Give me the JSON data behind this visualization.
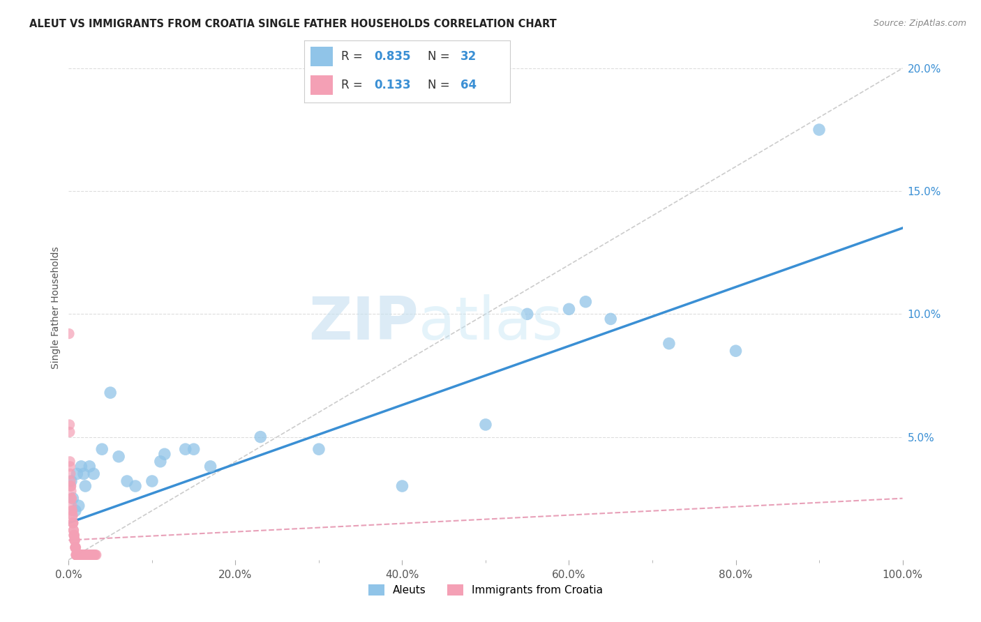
{
  "title": "ALEUT VS IMMIGRANTS FROM CROATIA SINGLE FATHER HOUSEHOLDS CORRELATION CHART",
  "source": "Source: ZipAtlas.com",
  "ylabel": "Single Father Households",
  "x_tick_labels": [
    "0.0%",
    "20.0%",
    "40.0%",
    "60.0%",
    "80.0%",
    "100.0%"
  ],
  "x_tick_values": [
    0,
    20,
    40,
    60,
    80,
    100
  ],
  "y_tick_labels": [
    "5.0%",
    "10.0%",
    "15.0%",
    "20.0%"
  ],
  "y_tick_values": [
    5,
    10,
    15,
    20
  ],
  "legend_labels": [
    "Aleuts",
    "Immigrants from Croatia"
  ],
  "aleuts_scatter": [
    [
      0.3,
      3.2
    ],
    [
      0.5,
      2.5
    ],
    [
      0.8,
      2.0
    ],
    [
      1.0,
      3.5
    ],
    [
      1.2,
      2.2
    ],
    [
      1.5,
      3.8
    ],
    [
      1.8,
      3.5
    ],
    [
      2.0,
      3.0
    ],
    [
      2.5,
      3.8
    ],
    [
      3.0,
      3.5
    ],
    [
      4.0,
      4.5
    ],
    [
      5.0,
      6.8
    ],
    [
      6.0,
      4.2
    ],
    [
      7.0,
      3.2
    ],
    [
      8.0,
      3.0
    ],
    [
      10.0,
      3.2
    ],
    [
      11.0,
      4.0
    ],
    [
      11.5,
      4.3
    ],
    [
      14.0,
      4.5
    ],
    [
      15.0,
      4.5
    ],
    [
      17.0,
      3.8
    ],
    [
      23.0,
      5.0
    ],
    [
      30.0,
      4.5
    ],
    [
      40.0,
      3.0
    ],
    [
      50.0,
      5.5
    ],
    [
      55.0,
      10.0
    ],
    [
      60.0,
      10.2
    ],
    [
      62.0,
      10.5
    ],
    [
      65.0,
      9.8
    ],
    [
      72.0,
      8.8
    ],
    [
      80.0,
      8.5
    ],
    [
      90.0,
      17.5
    ]
  ],
  "croatia_scatter": [
    [
      0.05,
      9.2
    ],
    [
      0.1,
      5.5
    ],
    [
      0.12,
      5.2
    ],
    [
      0.15,
      4.0
    ],
    [
      0.18,
      3.8
    ],
    [
      0.2,
      3.5
    ],
    [
      0.22,
      3.2
    ],
    [
      0.25,
      3.0
    ],
    [
      0.28,
      3.0
    ],
    [
      0.3,
      2.8
    ],
    [
      0.32,
      2.5
    ],
    [
      0.35,
      2.5
    ],
    [
      0.38,
      2.2
    ],
    [
      0.4,
      2.0
    ],
    [
      0.42,
      2.0
    ],
    [
      0.45,
      1.8
    ],
    [
      0.48,
      1.8
    ],
    [
      0.5,
      1.5
    ],
    [
      0.52,
      1.5
    ],
    [
      0.55,
      1.5
    ],
    [
      0.58,
      1.2
    ],
    [
      0.6,
      1.2
    ],
    [
      0.62,
      1.0
    ],
    [
      0.65,
      1.0
    ],
    [
      0.68,
      1.0
    ],
    [
      0.7,
      0.8
    ],
    [
      0.72,
      0.8
    ],
    [
      0.75,
      0.8
    ],
    [
      0.78,
      0.5
    ],
    [
      0.8,
      0.5
    ],
    [
      0.82,
      0.5
    ],
    [
      0.85,
      0.5
    ],
    [
      0.88,
      0.2
    ],
    [
      0.9,
      0.2
    ],
    [
      0.92,
      0.2
    ],
    [
      0.95,
      0.2
    ],
    [
      0.98,
      0.2
    ],
    [
      1.0,
      0.2
    ],
    [
      1.05,
      0.2
    ],
    [
      1.1,
      0.2
    ],
    [
      1.15,
      0.2
    ],
    [
      1.2,
      0.2
    ],
    [
      1.25,
      0.2
    ],
    [
      1.3,
      0.2
    ],
    [
      1.35,
      0.2
    ],
    [
      1.4,
      0.2
    ],
    [
      1.5,
      0.2
    ],
    [
      1.6,
      0.2
    ],
    [
      1.7,
      0.2
    ],
    [
      1.8,
      0.2
    ],
    [
      1.9,
      0.2
    ],
    [
      2.0,
      0.2
    ],
    [
      2.1,
      0.2
    ],
    [
      2.2,
      0.2
    ],
    [
      2.3,
      0.2
    ],
    [
      2.4,
      0.2
    ],
    [
      2.5,
      0.2
    ],
    [
      2.6,
      0.2
    ],
    [
      2.7,
      0.2
    ],
    [
      2.8,
      0.2
    ],
    [
      2.9,
      0.2
    ],
    [
      3.0,
      0.2
    ],
    [
      3.1,
      0.2
    ],
    [
      3.2,
      0.2
    ],
    [
      3.3,
      0.2
    ]
  ],
  "aleuts_line_x": [
    0,
    100
  ],
  "aleuts_line_y": [
    1.5,
    13.5
  ],
  "croatia_line_x": [
    0,
    100
  ],
  "croatia_line_y": [
    0.8,
    2.5
  ],
  "diagonal_line_x": [
    0,
    100
  ],
  "diagonal_line_y": [
    0,
    20
  ],
  "aleut_color": "#90c4e8",
  "croatia_color": "#f4a0b5",
  "aleut_line_color": "#3a8fd4",
  "croatia_line_color": "#e8a0b8",
  "diagonal_color": "#cccccc",
  "background_color": "#ffffff",
  "grid_color": "#dddddd",
  "watermark_zip": "ZIP",
  "watermark_atlas": "atlas",
  "xlim": [
    0,
    100
  ],
  "ylim": [
    0,
    20.5
  ]
}
